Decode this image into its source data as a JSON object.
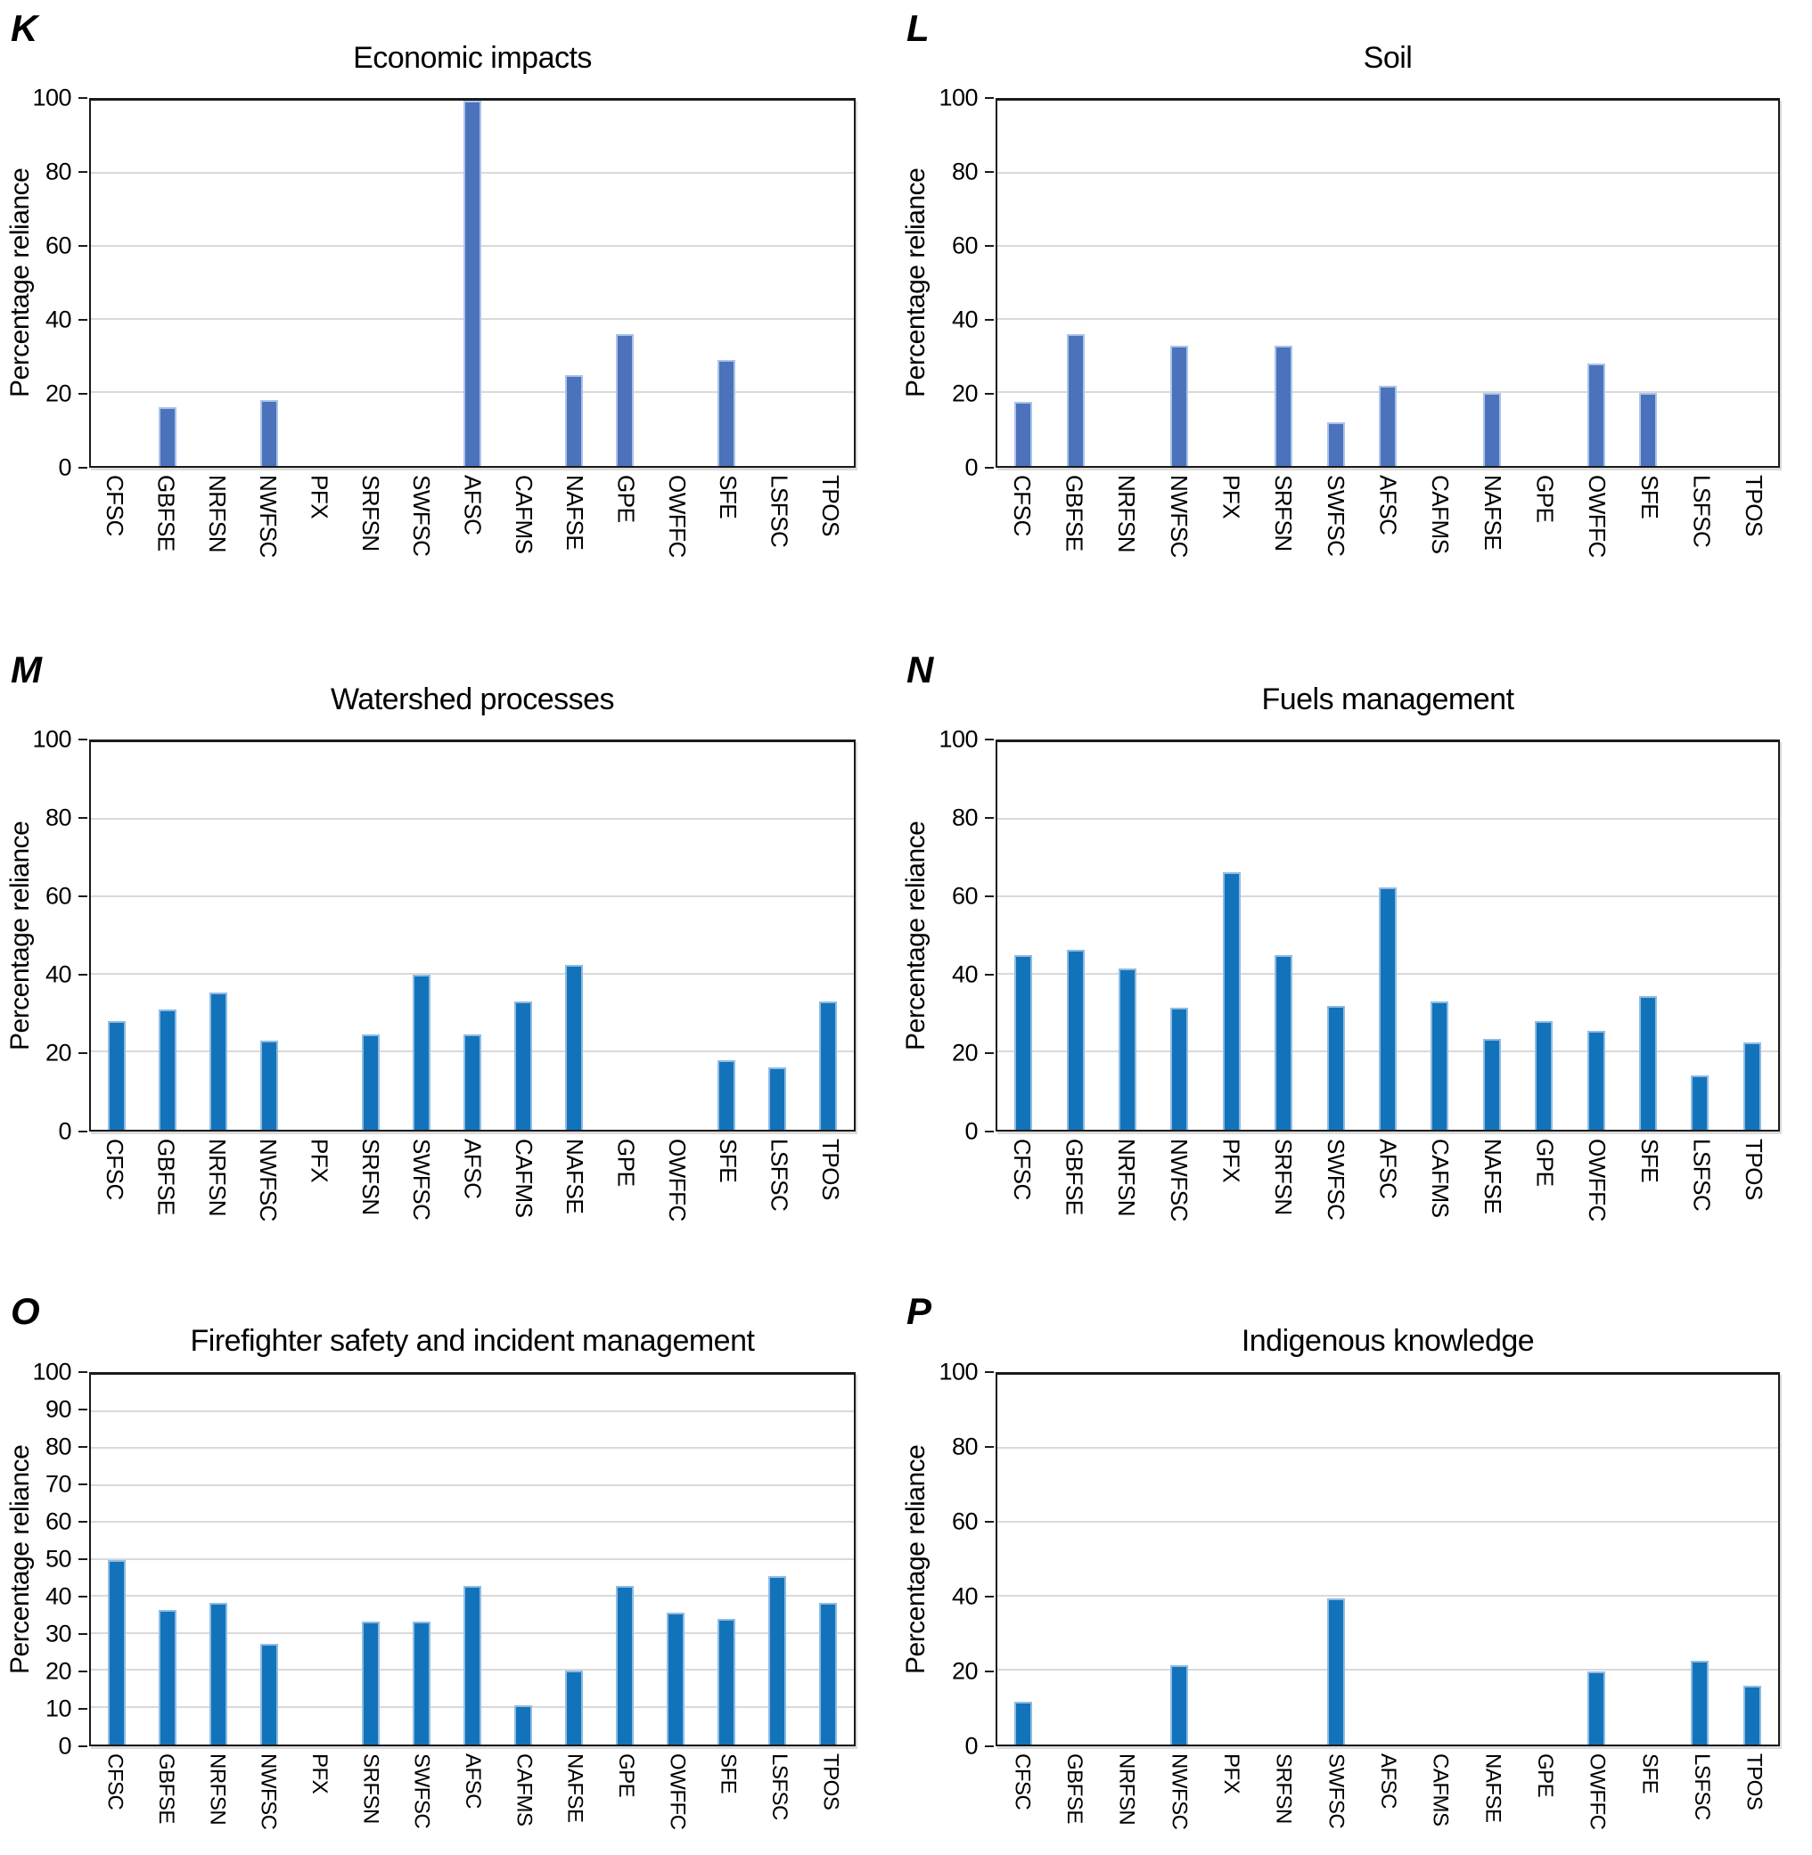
{
  "figure": {
    "ylabel": "Percentage reliance",
    "categories": [
      "CFSC",
      "GBFSE",
      "NRFSN",
      "NWFSC",
      "PFX",
      "SRFSN",
      "SWFSC",
      "AFSC",
      "CAFMS",
      "NAFSE",
      "GPE",
      "OWFFC",
      "SFE",
      "LSFSC",
      "TPOS"
    ],
    "colors": {
      "muted_blue_fill": "#4c72bc",
      "muted_blue_edge": "#a9c4ea",
      "strong_blue_fill": "#1273bb",
      "strong_blue_edge": "#8fbbe2",
      "gridline": "#d9d9d9",
      "axis": "#1a1a1a"
    }
  },
  "chart_data": [
    {
      "type": "bar",
      "panel_letter": "K",
      "title": "Economic impacts",
      "ylabel": "Percentage reliance",
      "ylim": [
        0,
        100
      ],
      "tick_step": 20,
      "yticks": [
        0,
        20,
        40,
        60,
        80,
        100
      ],
      "grid": true,
      "legend": "none",
      "bar_color": "#4c72bc",
      "bar_edge_color": "#a9c4ea",
      "categories": [
        "CFSC",
        "GBFSE",
        "NRFSN",
        "NWFSC",
        "PFX",
        "SRFSN",
        "SWFSC",
        "AFSC",
        "CAFMS",
        "NAFSE",
        "GPE",
        "OWFFC",
        "SFE",
        "LSFSC",
        "TPOS"
      ],
      "values": [
        0,
        16,
        0,
        18,
        0,
        0,
        0,
        100,
        0,
        25,
        36,
        0,
        29,
        0,
        0
      ]
    },
    {
      "type": "bar",
      "panel_letter": "L",
      "title": "Soil",
      "ylabel": "Percentage reliance",
      "ylim": [
        0,
        100
      ],
      "tick_step": 20,
      "yticks": [
        0,
        20,
        40,
        60,
        80,
        100
      ],
      "grid": true,
      "legend": "none",
      "bar_color": "#4c72bc",
      "bar_edge_color": "#a9c4ea",
      "categories": [
        "CFSC",
        "GBFSE",
        "NRFSN",
        "NWFSC",
        "PFX",
        "SRFSN",
        "SWFSC",
        "AFSC",
        "CAFMS",
        "NAFSE",
        "GPE",
        "OWFFC",
        "SFE",
        "LSFSC",
        "TPOS"
      ],
      "values": [
        17.5,
        36,
        0,
        33,
        0,
        33,
        12,
        22,
        0,
        20,
        0,
        28,
        20,
        0,
        0
      ]
    },
    {
      "type": "bar",
      "panel_letter": "M",
      "title": "Watershed processes",
      "ylabel": "Percentage reliance",
      "ylim": [
        0,
        100
      ],
      "tick_step": 20,
      "yticks": [
        0,
        20,
        40,
        60,
        80,
        100
      ],
      "grid": true,
      "legend": "none",
      "bar_color": "#1273bb",
      "bar_edge_color": "#8fbbe2",
      "categories": [
        "CFSC",
        "GBFSE",
        "NRFSN",
        "NWFSC",
        "PFX",
        "SRFSN",
        "SWFSC",
        "AFSC",
        "CAFMS",
        "NAFSE",
        "GPE",
        "OWFFC",
        "SFE",
        "LSFSC",
        "TPOS"
      ],
      "values": [
        28,
        31,
        35.5,
        23,
        0,
        24.5,
        40,
        24.5,
        33,
        42.5,
        0,
        0,
        18,
        16,
        33
      ]
    },
    {
      "type": "bar",
      "panel_letter": "N",
      "title": "Fuels management",
      "ylabel": "Percentage reliance",
      "ylim": [
        0,
        100
      ],
      "tick_step": 20,
      "yticks": [
        0,
        20,
        40,
        60,
        80,
        100
      ],
      "grid": true,
      "legend": "none",
      "bar_color": "#1273bb",
      "bar_edge_color": "#8fbbe2",
      "categories": [
        "CFSC",
        "GBFSE",
        "NRFSN",
        "NWFSC",
        "PFX",
        "SRFSN",
        "SWFSC",
        "AFSC",
        "CAFMS",
        "NAFSE",
        "GPE",
        "OWFFC",
        "SFE",
        "LSFSC",
        "TPOS"
      ],
      "values": [
        45,
        46.5,
        41.5,
        31.5,
        66.5,
        45,
        32,
        62.5,
        33,
        23.5,
        28,
        25.5,
        34.5,
        14,
        22.5
      ]
    },
    {
      "type": "bar",
      "panel_letter": "O",
      "title": "Firefighter safety and incident management",
      "ylabel": "Percentage reliance",
      "ylim": [
        0,
        100
      ],
      "tick_step": 10,
      "yticks": [
        0,
        10,
        20,
        30,
        40,
        50,
        60,
        70,
        80,
        90,
        100
      ],
      "grid": true,
      "legend": "none",
      "bar_color": "#1273bb",
      "bar_edge_color": "#8fbbe2",
      "categories": [
        "CFSC",
        "GBFSE",
        "NRFSN",
        "NWFSC",
        "PFX",
        "SRFSN",
        "SWFSC",
        "AFSC",
        "CAFMS",
        "NAFSE",
        "GPE",
        "OWFFC",
        "SFE",
        "LSFSC",
        "TPOS"
      ],
      "values": [
        50,
        36.3,
        38.2,
        27.3,
        0,
        33.3,
        33.3,
        42.9,
        10.5,
        20,
        42.9,
        35.7,
        34.1,
        45.5,
        38.3
      ]
    },
    {
      "type": "bar",
      "panel_letter": "P",
      "title": "Indigenous knowledge",
      "ylabel": "Percentage reliance",
      "ylim": [
        0,
        100
      ],
      "tick_step": 20,
      "yticks": [
        0,
        20,
        40,
        60,
        80,
        100
      ],
      "grid": true,
      "legend": "none",
      "bar_color": "#1273bb",
      "bar_edge_color": "#8fbbe2",
      "categories": [
        "CFSC",
        "GBFSE",
        "NRFSN",
        "NWFSC",
        "PFX",
        "SRFSN",
        "SWFSC",
        "AFSC",
        "CAFMS",
        "NAFSE",
        "GPE",
        "OWFFC",
        "SFE",
        "LSFSC",
        "TPOS"
      ],
      "values": [
        11.5,
        0,
        0,
        21.5,
        0,
        0,
        39.5,
        0,
        0,
        0,
        0,
        19.7,
        0,
        22.7,
        16
      ]
    }
  ]
}
